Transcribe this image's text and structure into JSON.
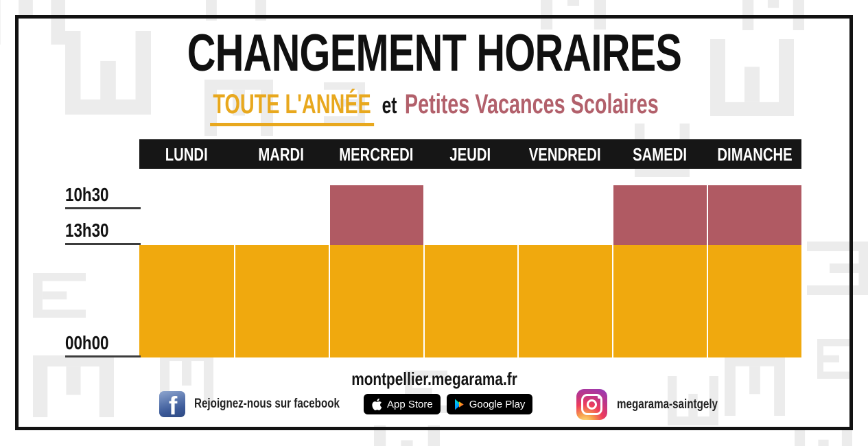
{
  "poster": {
    "title": "CHANGEMENT HORAIRES",
    "subtitle": {
      "highlight": "TOUTE L'ANNÉE",
      "connector": "et",
      "secondary": "Petites Vacances Scolaires"
    }
  },
  "chart_data": {
    "type": "bar",
    "title": "CHANGEMENT HORAIRES",
    "categories": [
      "LUNDI",
      "MARDI",
      "MERCREDI",
      "JEUDI",
      "VENDREDI",
      "SAMEDI",
      "DIMANCHE"
    ],
    "y_ticks": [
      "10h30",
      "13h30",
      "00h00"
    ],
    "series": [
      {
        "name": "Toute l'année",
        "start": "13h30",
        "end": "00h00",
        "color": "#F0A90E",
        "days": [
          "LUNDI",
          "MARDI",
          "MERCREDI",
          "JEUDI",
          "VENDREDI",
          "SAMEDI",
          "DIMANCHE"
        ]
      },
      {
        "name": "Petites Vacances Scolaires",
        "start": "10h30",
        "end": "13h30",
        "color": "#B05A63",
        "days": [
          "MERCREDI",
          "SAMEDI",
          "DIMANCHE"
        ]
      }
    ],
    "legend_position": "none",
    "grid": false
  },
  "footer": {
    "website": "montpellier.megarama.fr",
    "facebook_text": "Rejoignez-nous sur facebook",
    "app_store_label": "App Store",
    "google_play_label": "Google Play",
    "instagram_handle": "megarama-saintgely"
  },
  "colors": {
    "gold": "#E8A81E",
    "yellow": "#F0A90E",
    "maroon-bar": "#B05A63",
    "maroon-text": "#B2606B",
    "pattern": "#ECECEC",
    "facebook": "#3B5998"
  }
}
